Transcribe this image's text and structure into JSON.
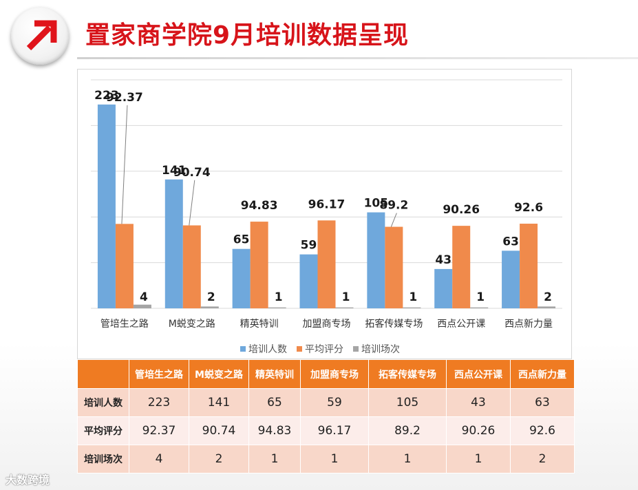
{
  "header": {
    "title": "置家商学院9月培训数据呈现",
    "logo_icon": "arrow-up-right-icon",
    "accent_color": "#d7141a"
  },
  "chart_data": {
    "type": "bar",
    "categories": [
      "管培生之路",
      "M蜕变之路",
      "精英特训",
      "加盟商专场",
      "拓客传媒专场",
      "西点公开课",
      "西点新力量"
    ],
    "series": [
      {
        "name": "培训人数",
        "values": [
          223,
          141,
          65,
          59,
          105,
          43,
          63
        ],
        "color": "#6fa8dc"
      },
      {
        "name": "平均评分",
        "values": [
          92.37,
          90.74,
          94.83,
          96.17,
          89.2,
          90.26,
          92.6
        ],
        "color": "#f08a4b"
      },
      {
        "name": "培训场次",
        "values": [
          4,
          2,
          1,
          1,
          1,
          1,
          2
        ],
        "color": "#a5a5a5"
      }
    ],
    "data_labels": [
      [
        "223",
        "141",
        "65",
        "59",
        "105",
        "43",
        "63"
      ],
      [
        "92.37",
        "90.74",
        "94.83",
        "96.17",
        "89.2",
        "90.26",
        "92.6"
      ],
      [
        "4",
        "2",
        "1",
        "1",
        "1",
        "1",
        "2"
      ]
    ],
    "ylim": [
      0,
      250
    ],
    "gridlines": true,
    "legend_position": "bottom"
  },
  "table": {
    "header_corner": "",
    "columns": [
      "管培生之路",
      "M蜕变之路",
      "精英特训",
      "加盟商专场",
      "拓客传媒专场",
      "西点公开课",
      "西点新力量"
    ],
    "rows": [
      {
        "label": "培训人数",
        "cells": [
          "223",
          "141",
          "65",
          "59",
          "105",
          "43",
          "63"
        ]
      },
      {
        "label": "平均评分",
        "cells": [
          "92.37",
          "90.74",
          "94.83",
          "96.17",
          "89.2",
          "90.26",
          "92.6"
        ]
      },
      {
        "label": "培训场次",
        "cells": [
          "4",
          "2",
          "1",
          "1",
          "1",
          "1",
          "2"
        ]
      }
    ]
  },
  "watermark": "大数跨境"
}
